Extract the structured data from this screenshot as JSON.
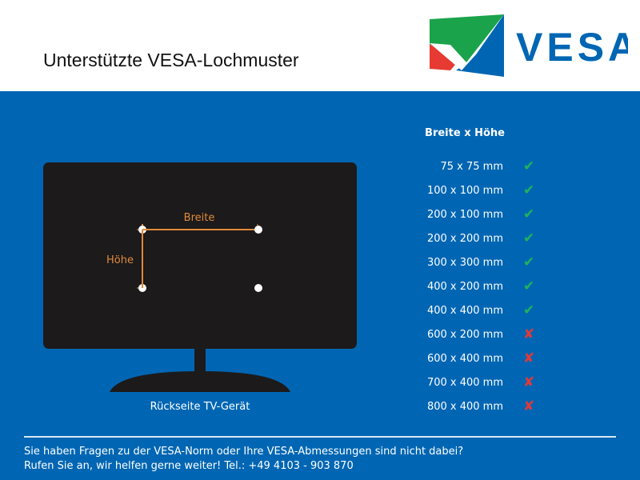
{
  "header": {
    "title": "Unterstützte VESA-Lochmuster",
    "logo_text": "VESA"
  },
  "diagram": {
    "width_label": "Breite",
    "height_label": "Höhe",
    "caption": "Rückseite TV-Gerät"
  },
  "table": {
    "header": "Breite x Höhe",
    "rows": [
      {
        "size": "75 x 75 mm",
        "supported": true
      },
      {
        "size": "100 x 100 mm",
        "supported": true
      },
      {
        "size": "200 x 100 mm",
        "supported": true
      },
      {
        "size": "200 x 200 mm",
        "supported": true
      },
      {
        "size": "300 x 300 mm",
        "supported": true
      },
      {
        "size": "400 x 200 mm",
        "supported": true
      },
      {
        "size": "400 x 400 mm",
        "supported": true
      },
      {
        "size": "600 x 200 mm",
        "supported": false
      },
      {
        "size": "600 x 400 mm",
        "supported": false
      },
      {
        "size": "700 x 400 mm",
        "supported": false
      },
      {
        "size": "800 x 400 mm",
        "supported": false
      }
    ],
    "check_icon": "✔",
    "cross_icon": "✘"
  },
  "footer": {
    "line1": "Sie haben Fragen zu der VESA-Norm oder Ihre VESA-Abmessungen sind nicht dabei?",
    "line2": "Rufen Sie an, wir helfen gerne weiter! Tel.: +49 4103 - 903 870"
  },
  "colors": {
    "background": "#0066b3",
    "check": "#1fb35a",
    "cross": "#e03a3a",
    "measure": "#e08a3a"
  }
}
